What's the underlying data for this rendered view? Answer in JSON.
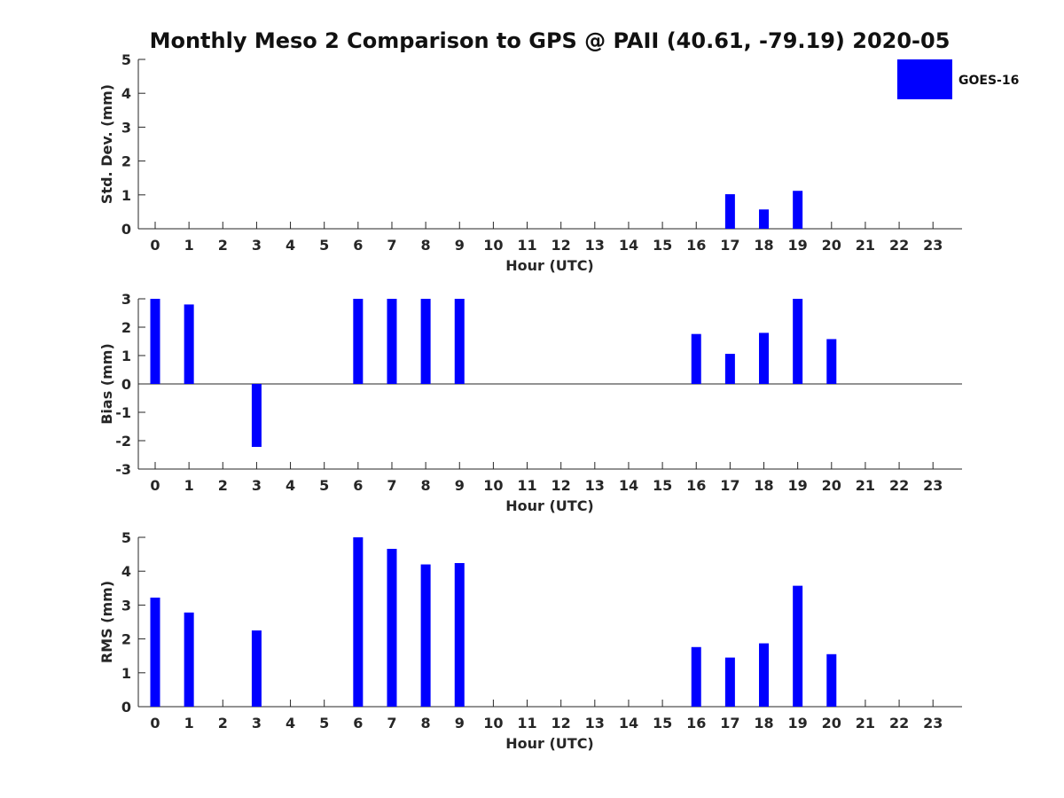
{
  "title": "Monthly Meso 2 Comparison to GPS @ PAII (40.61, -79.19) 2020-05",
  "legend": {
    "label": "GOES-16",
    "color": "#0000ff"
  },
  "chart_data": [
    {
      "type": "bar",
      "xlabel": "Hour (UTC)",
      "ylabel": "Std. Dev. (mm)",
      "categories": [
        "0",
        "1",
        "2",
        "3",
        "4",
        "5",
        "6",
        "7",
        "8",
        "9",
        "10",
        "11",
        "12",
        "13",
        "14",
        "15",
        "16",
        "17",
        "18",
        "19",
        "20",
        "21",
        "22",
        "23"
      ],
      "yticks": [
        "0",
        "1",
        "2",
        "3",
        "4",
        "5"
      ],
      "ylim": [
        0,
        5
      ],
      "series": [
        {
          "name": "GOES-16",
          "color": "#0000ff",
          "values": [
            null,
            null,
            null,
            null,
            null,
            null,
            null,
            null,
            null,
            null,
            null,
            null,
            null,
            null,
            null,
            null,
            null,
            1.02,
            0.57,
            1.12,
            null,
            null,
            null,
            null
          ]
        }
      ]
    },
    {
      "type": "bar",
      "xlabel": "Hour (UTC)",
      "ylabel": "Bias (mm)",
      "categories": [
        "0",
        "1",
        "2",
        "3",
        "4",
        "5",
        "6",
        "7",
        "8",
        "9",
        "10",
        "11",
        "12",
        "13",
        "14",
        "15",
        "16",
        "17",
        "18",
        "19",
        "20",
        "21",
        "22",
        "23"
      ],
      "yticks": [
        "-3",
        "-2",
        "-1",
        "0",
        "1",
        "2",
        "3"
      ],
      "ylim": [
        -3,
        3
      ],
      "zero_line": true,
      "series": [
        {
          "name": "GOES-16",
          "color": "#0000ff",
          "values": [
            3.0,
            2.8,
            null,
            -2.22,
            null,
            null,
            3.0,
            3.0,
            3.0,
            3.0,
            null,
            null,
            null,
            null,
            null,
            null,
            1.76,
            1.06,
            1.8,
            3.0,
            1.58,
            null,
            null,
            null
          ]
        }
      ]
    },
    {
      "type": "bar",
      "xlabel": "Hour (UTC)",
      "ylabel": "RMS (mm)",
      "categories": [
        "0",
        "1",
        "2",
        "3",
        "4",
        "5",
        "6",
        "7",
        "8",
        "9",
        "10",
        "11",
        "12",
        "13",
        "14",
        "15",
        "16",
        "17",
        "18",
        "19",
        "20",
        "21",
        "22",
        "23"
      ],
      "yticks": [
        "0",
        "1",
        "2",
        "3",
        "4",
        "5"
      ],
      "ylim": [
        0,
        5
      ],
      "series": [
        {
          "name": "GOES-16",
          "color": "#0000ff",
          "values": [
            3.22,
            2.78,
            null,
            2.25,
            null,
            null,
            5.0,
            4.66,
            4.2,
            4.24,
            null,
            null,
            null,
            null,
            null,
            null,
            1.76,
            1.45,
            1.87,
            3.57,
            1.55,
            null,
            null,
            null
          ]
        }
      ]
    }
  ]
}
